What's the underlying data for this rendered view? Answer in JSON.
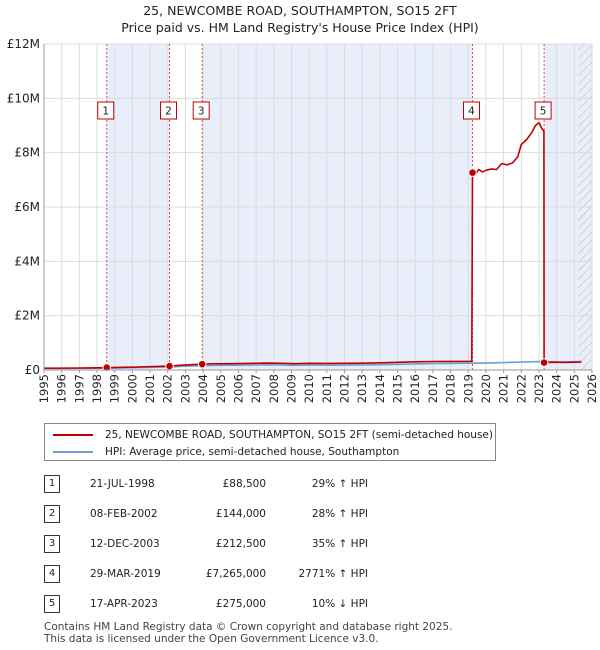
{
  "title": {
    "line1": "25, NEWCOMBE ROAD, SOUTHAMPTON, SO15 2FT",
    "line2": "Price paid vs. HM Land Registry's House Price Index (HPI)"
  },
  "chart_data": {
    "type": "line",
    "x_range": [
      1995,
      2026
    ],
    "ylim": [
      0,
      12000000
    ],
    "y_ticks": [
      {
        "value": 0,
        "label": "£0"
      },
      {
        "value": 2000000,
        "label": "£2M"
      },
      {
        "value": 4000000,
        "label": "£4M"
      },
      {
        "value": 6000000,
        "label": "£6M"
      },
      {
        "value": 8000000,
        "label": "£8M"
      },
      {
        "value": 10000000,
        "label": "£10M"
      },
      {
        "value": 12000000,
        "label": "£12M"
      }
    ],
    "x_ticks": [
      "1995",
      "1996",
      "1997",
      "1998",
      "1999",
      "2000",
      "2001",
      "2002",
      "2003",
      "2004",
      "2005",
      "2006",
      "2007",
      "2008",
      "2009",
      "2010",
      "2011",
      "2012",
      "2013",
      "2014",
      "2015",
      "2016",
      "2017",
      "2018",
      "2019",
      "2020",
      "2021",
      "2022",
      "2023",
      "2024",
      "2025",
      "2026"
    ],
    "grid": true,
    "shaded_regions": [
      [
        1998.55,
        2002.1
      ],
      [
        2003.95,
        2019.24
      ],
      [
        2023.29,
        2026
      ]
    ],
    "hatched_region": [
      2025.2,
      2026
    ],
    "series": [
      {
        "name": "25, NEWCOMBE ROAD, SOUTHAMPTON, SO15 2FT (semi-detached house)",
        "color": "#c00000",
        "points": [
          [
            1995.0,
            68000
          ],
          [
            1996.0,
            69000
          ],
          [
            1997.0,
            74000
          ],
          [
            1998.0,
            82000
          ],
          [
            1998.55,
            88500
          ],
          [
            1999.0,
            92000
          ],
          [
            2000.0,
            105000
          ],
          [
            2001.0,
            124000
          ],
          [
            2002.1,
            144000
          ],
          [
            2003.0,
            185000
          ],
          [
            2003.95,
            212500
          ],
          [
            2004.5,
            226000
          ],
          [
            2005.5,
            232000
          ],
          [
            2006.5,
            240000
          ],
          [
            2007.5,
            256000
          ],
          [
            2008.5,
            246000
          ],
          [
            2009.2,
            232000
          ],
          [
            2010.0,
            245000
          ],
          [
            2011.0,
            243000
          ],
          [
            2012.0,
            246000
          ],
          [
            2013.0,
            252000
          ],
          [
            2014.0,
            264000
          ],
          [
            2015.0,
            283000
          ],
          [
            2016.0,
            300000
          ],
          [
            2017.0,
            313000
          ],
          [
            2018.0,
            317000
          ],
          [
            2019.2,
            320000
          ],
          [
            2019.24,
            7265000
          ],
          [
            2019.4,
            7210000
          ],
          [
            2019.6,
            7380000
          ],
          [
            2019.8,
            7290000
          ],
          [
            2020.0,
            7350000
          ],
          [
            2020.3,
            7400000
          ],
          [
            2020.6,
            7380000
          ],
          [
            2020.9,
            7600000
          ],
          [
            2021.2,
            7550000
          ],
          [
            2021.5,
            7620000
          ],
          [
            2021.8,
            7850000
          ],
          [
            2022.0,
            8300000
          ],
          [
            2022.3,
            8480000
          ],
          [
            2022.6,
            8750000
          ],
          [
            2022.8,
            9000000
          ],
          [
            2023.0,
            9100000
          ],
          [
            2023.2,
            8850000
          ],
          [
            2023.28,
            8800000
          ],
          [
            2023.29,
            275000
          ],
          [
            2023.5,
            280000
          ],
          [
            2023.8,
            288000
          ],
          [
            2024.0,
            284000
          ],
          [
            2024.5,
            276000
          ],
          [
            2025.0,
            288000
          ],
          [
            2025.4,
            290000
          ]
        ]
      },
      {
        "name": "HPI: Average price, semi-detached house, Southampton",
        "color": "#6f9fd8",
        "points": [
          [
            1995.0,
            55000
          ],
          [
            1996.0,
            56000
          ],
          [
            1997.0,
            60000
          ],
          [
            1998.0,
            65000
          ],
          [
            1998.55,
            68000
          ],
          [
            1999.0,
            72000
          ],
          [
            2000.0,
            83000
          ],
          [
            2001.0,
            97000
          ],
          [
            2002.1,
            112000
          ],
          [
            2003.0,
            140000
          ],
          [
            2003.95,
            157000
          ],
          [
            2005.0,
            170000
          ],
          [
            2006.0,
            177000
          ],
          [
            2007.0,
            188000
          ],
          [
            2007.8,
            192000
          ],
          [
            2008.5,
            180000
          ],
          [
            2009.2,
            170000
          ],
          [
            2010.0,
            180000
          ],
          [
            2011.0,
            178000
          ],
          [
            2012.0,
            181000
          ],
          [
            2013.0,
            185000
          ],
          [
            2014.0,
            195000
          ],
          [
            2015.0,
            208000
          ],
          [
            2016.0,
            223000
          ],
          [
            2017.0,
            236000
          ],
          [
            2018.0,
            242000
          ],
          [
            2019.24,
            252000
          ],
          [
            2020.0,
            255000
          ],
          [
            2021.0,
            272000
          ],
          [
            2022.0,
            292000
          ],
          [
            2022.8,
            308000
          ],
          [
            2023.29,
            305000
          ],
          [
            2024.0,
            300000
          ],
          [
            2025.0,
            308000
          ],
          [
            2025.4,
            311000
          ]
        ]
      }
    ],
    "sales": [
      {
        "num": "1",
        "year": 1998.55,
        "price": 88500,
        "date": "21-JUL-1998",
        "price_label": "£88,500",
        "hpi": "29% ↑ HPI"
      },
      {
        "num": "2",
        "year": 2002.1,
        "price": 144000,
        "date": "08-FEB-2002",
        "price_label": "£144,000",
        "hpi": "28% ↑ HPI"
      },
      {
        "num": "3",
        "year": 2003.95,
        "price": 212500,
        "date": "12-DEC-2003",
        "price_label": "£212,500",
        "hpi": "35% ↑ HPI"
      },
      {
        "num": "4",
        "year": 2019.24,
        "price": 7265000,
        "date": "29-MAR-2019",
        "price_label": "£7,265,000",
        "hpi": "2771% ↑ HPI"
      },
      {
        "num": "5",
        "year": 2023.29,
        "price": 275000,
        "date": "17-APR-2023",
        "price_label": "£275,000",
        "hpi": "10% ↓ HPI"
      }
    ]
  },
  "legend": {
    "property_label": "25, NEWCOMBE ROAD, SOUTHAMPTON, SO15 2FT (semi-detached house)",
    "hpi_label": "HPI: Average price, semi-detached house, Southampton",
    "property_color": "#c00000",
    "hpi_color": "#6f9fd8"
  },
  "footer": {
    "line1": "Contains HM Land Registry data © Crown copyright and database right 2025.",
    "line2": "This data is licensed under the Open Government Licence v3.0."
  }
}
